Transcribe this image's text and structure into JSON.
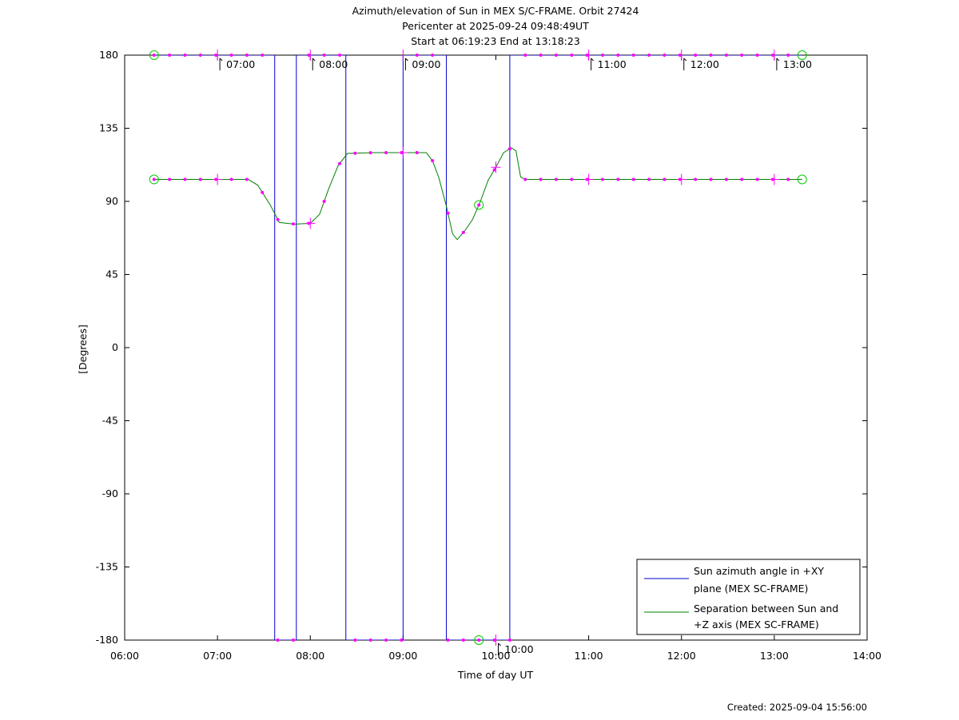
{
  "chart_data": {
    "type": "line",
    "title_lines": [
      "Azimuth/elevation of Sun in MEX S/C-FRAME.  Orbit 27424",
      "Pericenter at 2025-09-24 09:48:49UT",
      "Start at 06:19:23 End at 13:18:23"
    ],
    "xlabel": "Time of day UT",
    "ylabel": "[Degrees]",
    "xlim": [
      "06:00",
      "14:00"
    ],
    "ylim": [
      -180,
      180
    ],
    "x_ticks": [
      "06:00",
      "07:00",
      "08:00",
      "09:00",
      "10:00",
      "11:00",
      "12:00",
      "13:00",
      "14:00"
    ],
    "y_ticks": [
      180,
      135,
      90,
      45,
      0,
      -45,
      -90,
      -135,
      -180
    ],
    "hour_markers": [
      {
        "time": "07:00",
        "label": "07:00",
        "y": 180
      },
      {
        "time": "08:00",
        "label": "08:00",
        "y": 180
      },
      {
        "time": "09:00",
        "label": "09:00",
        "y": 180
      },
      {
        "time": "10:00",
        "label": "10:00",
        "y": -180
      },
      {
        "time": "11:00",
        "label": "11:00",
        "y": 180
      },
      {
        "time": "12:00",
        "label": "12:00",
        "y": 180
      },
      {
        "time": "13:00",
        "label": "13:00",
        "y": 180
      }
    ],
    "series": [
      {
        "name": "Sun azimuth angle in +XY plane (MEX SC-FRAME)",
        "legend_lines": [
          "Sun azimuth angle in +XY",
          "plane (MEX SC-FRAME)"
        ],
        "color": "#0000cc",
        "points": [
          [
            "06:19",
            180
          ],
          [
            "07:37",
            180
          ],
          [
            "07:37",
            -180
          ],
          [
            "07:51",
            -180
          ],
          [
            "07:51",
            180
          ],
          [
            "08:23",
            180
          ],
          [
            "08:23",
            -180
          ],
          [
            "09:00",
            -180
          ],
          [
            "09:00",
            180
          ],
          [
            "09:28",
            180
          ],
          [
            "09:28",
            -180
          ],
          [
            "10:09",
            -180
          ],
          [
            "10:09",
            180
          ],
          [
            "13:18",
            180
          ]
        ]
      },
      {
        "name": "Separation between Sun and +Z axis (MEX SC-FRAME)",
        "legend_lines": [
          "Separation between Sun and",
          "+Z axis (MEX SC-FRAME)"
        ],
        "color": "#008000",
        "points": [
          [
            "06:19",
            103.5
          ],
          [
            "07:00",
            103.5
          ],
          [
            "07:20",
            103.5
          ],
          [
            "07:26",
            100
          ],
          [
            "07:34",
            88
          ],
          [
            "07:40",
            77
          ],
          [
            "07:50",
            76
          ],
          [
            "08:00",
            76.5
          ],
          [
            "08:06",
            82
          ],
          [
            "08:12",
            98
          ],
          [
            "08:18",
            112
          ],
          [
            "08:24",
            119.5
          ],
          [
            "08:40",
            120
          ],
          [
            "09:00",
            120
          ],
          [
            "09:15",
            120
          ],
          [
            "09:19",
            115
          ],
          [
            "09:23",
            105
          ],
          [
            "09:28",
            87
          ],
          [
            "09:32",
            70
          ],
          [
            "09:35",
            66.5
          ],
          [
            "09:40",
            72
          ],
          [
            "09:45",
            79
          ],
          [
            "09:50",
            90
          ],
          [
            "09:55",
            103
          ],
          [
            "10:00",
            111
          ],
          [
            "10:05",
            120
          ],
          [
            "10:10",
            123
          ],
          [
            "10:13",
            121
          ],
          [
            "10:16",
            105
          ],
          [
            "10:19",
            103.5
          ],
          [
            "11:00",
            103.5
          ],
          [
            "12:00",
            103.5
          ],
          [
            "13:00",
            103.5
          ],
          [
            "13:18",
            103.5
          ]
        ]
      }
    ],
    "marker_color": "#ff00ff",
    "special_markers_color": "#00cc00",
    "legend_position": "bottom-right",
    "grid": false,
    "footer": "Created: 2025-09-04 15:56:00"
  }
}
